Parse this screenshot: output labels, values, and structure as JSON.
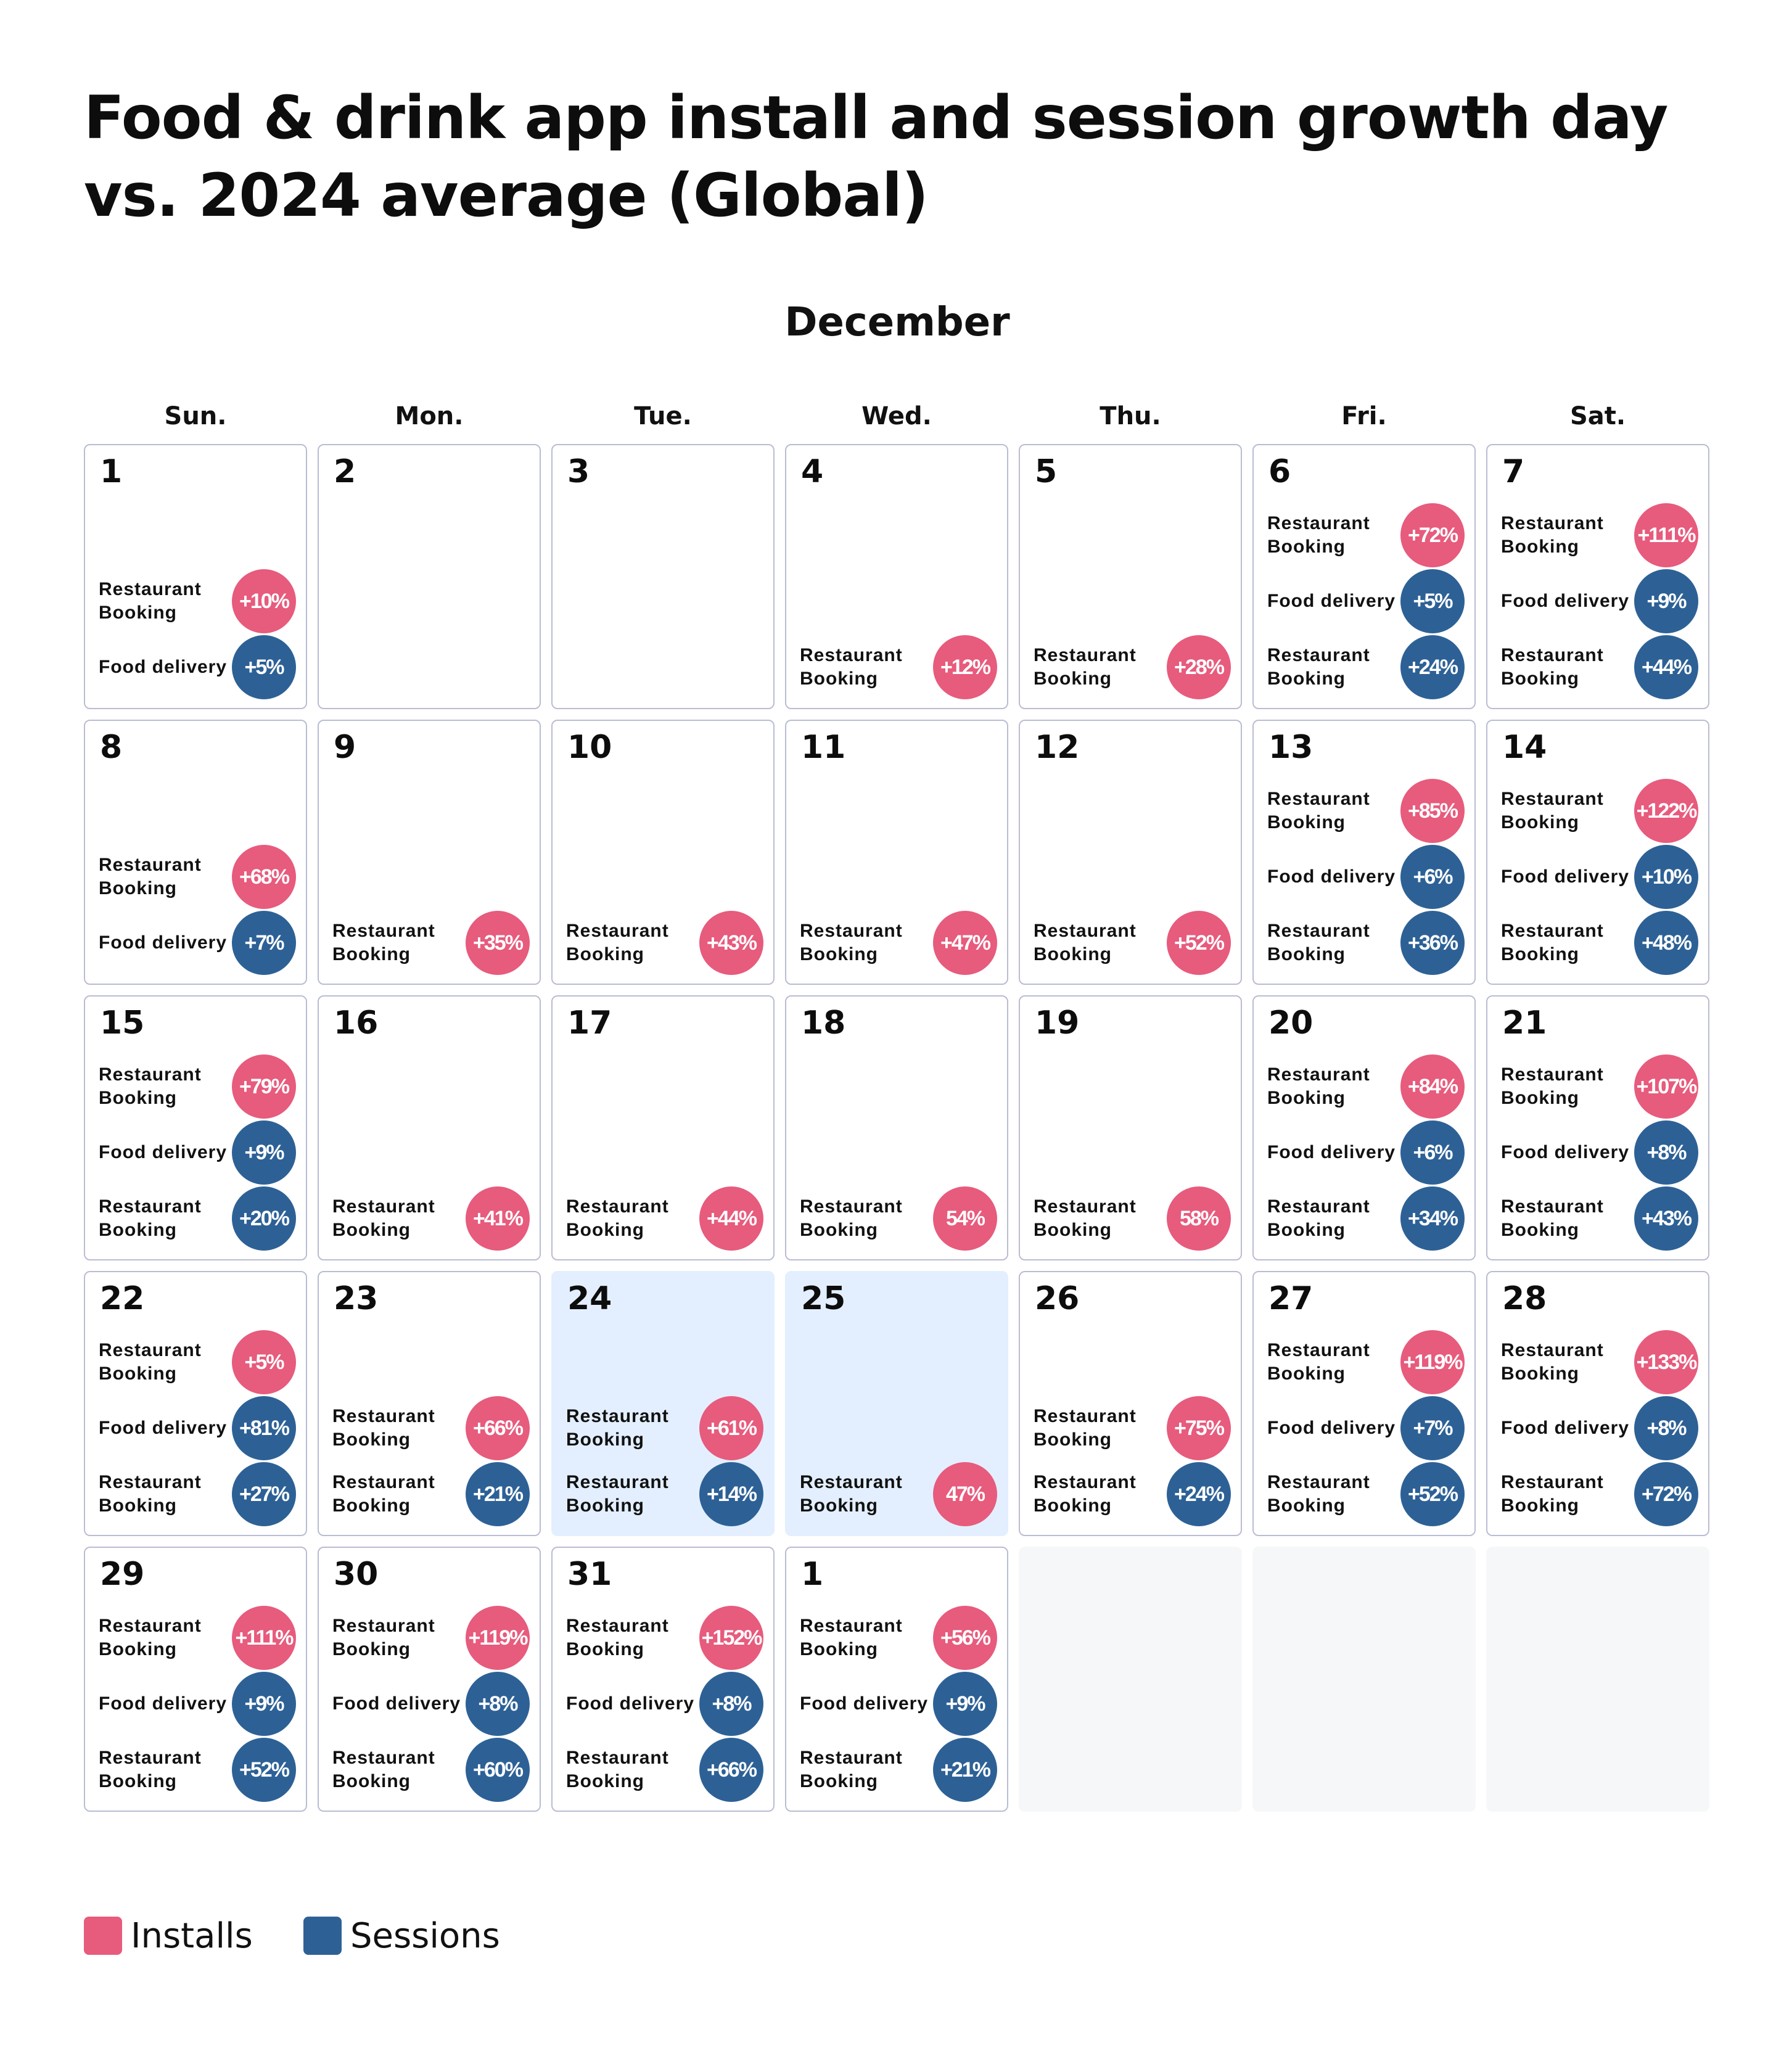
{
  "title": "Food & drink app install and session growth day vs. 2024 average (Global)",
  "month": "December",
  "colors": {
    "installs": "#e75b7d",
    "sessions": "#2d6196",
    "holiday": "#e3efff",
    "empty": "#f6f7f9"
  },
  "legend": [
    {
      "label": "Installs",
      "color": "#e75b7d"
    },
    {
      "label": "Sessions",
      "color": "#2d6196"
    }
  ],
  "chart_data": {
    "type": "table",
    "weekdays": [
      "Sun.",
      "Mon.",
      "Tue.",
      "Wed.",
      "Thu.",
      "Fri.",
      "Sat."
    ],
    "days": [
      {
        "day": "1",
        "entries": [
          {
            "label": "Restaurant Booking",
            "value": "+10%",
            "series": "Installs"
          },
          {
            "label": "Food delivery",
            "value": "+5%",
            "series": "Sessions"
          }
        ]
      },
      {
        "day": "2",
        "entries": []
      },
      {
        "day": "3",
        "entries": []
      },
      {
        "day": "4",
        "entries": [
          {
            "label": "Restaurant Booking",
            "value": "+12%",
            "series": "Installs"
          }
        ]
      },
      {
        "day": "5",
        "entries": [
          {
            "label": "Restaurant Booking",
            "value": "+28%",
            "series": "Installs"
          }
        ]
      },
      {
        "day": "6",
        "entries": [
          {
            "label": "Restaurant Booking",
            "value": "+72%",
            "series": "Installs"
          },
          {
            "label": "Food delivery",
            "value": "+5%",
            "series": "Sessions"
          },
          {
            "label": "Restaurant Booking",
            "value": "+24%",
            "series": "Sessions"
          }
        ]
      },
      {
        "day": "7",
        "entries": [
          {
            "label": "Restaurant Booking",
            "value": "+111%",
            "series": "Installs"
          },
          {
            "label": "Food delivery",
            "value": "+9%",
            "series": "Sessions"
          },
          {
            "label": "Restaurant Booking",
            "value": "+44%",
            "series": "Sessions"
          }
        ]
      },
      {
        "day": "8",
        "entries": [
          {
            "label": "Restaurant Booking",
            "value": "+68%",
            "series": "Installs"
          },
          {
            "label": "Food delivery",
            "value": "+7%",
            "series": "Sessions"
          }
        ]
      },
      {
        "day": "9",
        "entries": [
          {
            "label": "Restaurant Booking",
            "value": "+35%",
            "series": "Installs"
          }
        ]
      },
      {
        "day": "10",
        "entries": [
          {
            "label": "Restaurant Booking",
            "value": "+43%",
            "series": "Installs"
          }
        ]
      },
      {
        "day": "11",
        "entries": [
          {
            "label": "Restaurant Booking",
            "value": "+47%",
            "series": "Installs"
          }
        ]
      },
      {
        "day": "12",
        "entries": [
          {
            "label": "Restaurant Booking",
            "value": "+52%",
            "series": "Installs"
          }
        ]
      },
      {
        "day": "13",
        "entries": [
          {
            "label": "Restaurant Booking",
            "value": "+85%",
            "series": "Installs"
          },
          {
            "label": "Food delivery",
            "value": "+6%",
            "series": "Sessions"
          },
          {
            "label": "Restaurant Booking",
            "value": "+36%",
            "series": "Sessions"
          }
        ]
      },
      {
        "day": "14",
        "entries": [
          {
            "label": "Restaurant Booking",
            "value": "+122%",
            "series": "Installs"
          },
          {
            "label": "Food delivery",
            "value": "+10%",
            "series": "Sessions"
          },
          {
            "label": "Restaurant Booking",
            "value": "+48%",
            "series": "Sessions"
          }
        ]
      },
      {
        "day": "15",
        "entries": [
          {
            "label": "Restaurant Booking",
            "value": "+79%",
            "series": "Installs"
          },
          {
            "label": "Food delivery",
            "value": "+9%",
            "series": "Sessions"
          },
          {
            "label": "Restaurant Booking",
            "value": "+20%",
            "series": "Sessions"
          }
        ]
      },
      {
        "day": "16",
        "entries": [
          {
            "label": "Restaurant Booking",
            "value": "+41%",
            "series": "Installs"
          }
        ]
      },
      {
        "day": "17",
        "entries": [
          {
            "label": "Restaurant Booking",
            "value": "+44%",
            "series": "Installs"
          }
        ]
      },
      {
        "day": "18",
        "entries": [
          {
            "label": "Restaurant Booking",
            "value": "54%",
            "series": "Installs"
          }
        ]
      },
      {
        "day": "19",
        "entries": [
          {
            "label": "Restaurant Booking",
            "value": "58%",
            "series": "Installs"
          }
        ]
      },
      {
        "day": "20",
        "entries": [
          {
            "label": "Restaurant Booking",
            "value": "+84%",
            "series": "Installs"
          },
          {
            "label": "Food delivery",
            "value": "+6%",
            "series": "Sessions"
          },
          {
            "label": "Restaurant Booking",
            "value": "+34%",
            "series": "Sessions"
          }
        ]
      },
      {
        "day": "21",
        "entries": [
          {
            "label": "Restaurant Booking",
            "value": "+107%",
            "series": "Installs"
          },
          {
            "label": "Food delivery",
            "value": "+8%",
            "series": "Sessions"
          },
          {
            "label": "Restaurant Booking",
            "value": "+43%",
            "series": "Sessions"
          }
        ]
      },
      {
        "day": "22",
        "entries": [
          {
            "label": "Restaurant Booking",
            "value": "+5%",
            "series": "Installs"
          },
          {
            "label": "Food delivery",
            "value": "+81%",
            "series": "Sessions"
          },
          {
            "label": "Restaurant Booking",
            "value": "+27%",
            "series": "Sessions"
          }
        ]
      },
      {
        "day": "23",
        "entries": [
          {
            "label": "Restaurant Booking",
            "value": "+66%",
            "series": "Installs"
          },
          {
            "label": "Restaurant Booking",
            "value": "+21%",
            "series": "Sessions"
          }
        ]
      },
      {
        "day": "24",
        "highlight": true,
        "entries": [
          {
            "label": "Restaurant Booking",
            "value": "+61%",
            "series": "Installs"
          },
          {
            "label": "Restaurant Booking",
            "value": "+14%",
            "series": "Sessions"
          }
        ]
      },
      {
        "day": "25",
        "highlight": true,
        "entries": [
          {
            "label": "Restaurant Booking",
            "value": "47%",
            "series": "Installs"
          }
        ]
      },
      {
        "day": "26",
        "entries": [
          {
            "label": "Restaurant Booking",
            "value": "+75%",
            "series": "Installs"
          },
          {
            "label": "Restaurant Booking",
            "value": "+24%",
            "series": "Sessions"
          }
        ]
      },
      {
        "day": "27",
        "entries": [
          {
            "label": "Restaurant Booking",
            "value": "+119%",
            "series": "Installs"
          },
          {
            "label": "Food delivery",
            "value": "+7%",
            "series": "Sessions"
          },
          {
            "label": "Restaurant Booking",
            "value": "+52%",
            "series": "Sessions"
          }
        ]
      },
      {
        "day": "28",
        "entries": [
          {
            "label": "Restaurant Booking",
            "value": "+133%",
            "series": "Installs"
          },
          {
            "label": "Food delivery",
            "value": "+8%",
            "series": "Sessions"
          },
          {
            "label": "Restaurant Booking",
            "value": "+72%",
            "series": "Sessions"
          }
        ]
      },
      {
        "day": "29",
        "entries": [
          {
            "label": "Restaurant Booking",
            "value": "+111%",
            "series": "Installs"
          },
          {
            "label": "Food delivery",
            "value": "+9%",
            "series": "Sessions"
          },
          {
            "label": "Restaurant Booking",
            "value": "+52%",
            "series": "Sessions"
          }
        ]
      },
      {
        "day": "30",
        "entries": [
          {
            "label": "Restaurant Booking",
            "value": "+119%",
            "series": "Installs"
          },
          {
            "label": "Food delivery",
            "value": "+8%",
            "series": "Sessions"
          },
          {
            "label": "Restaurant Booking",
            "value": "+60%",
            "series": "Sessions"
          }
        ]
      },
      {
        "day": "31",
        "entries": [
          {
            "label": "Restaurant Booking",
            "value": "+152%",
            "series": "Installs"
          },
          {
            "label": "Food delivery",
            "value": "+8%",
            "series": "Sessions"
          },
          {
            "label": "Restaurant Booking",
            "value": "+66%",
            "series": "Sessions"
          }
        ]
      },
      {
        "day": "1",
        "entries": [
          {
            "label": "Restaurant Booking",
            "value": "+56%",
            "series": "Installs"
          },
          {
            "label": "Food delivery",
            "value": "+9%",
            "series": "Sessions"
          },
          {
            "label": "Restaurant Booking",
            "value": "+21%",
            "series": "Sessions"
          }
        ]
      },
      {
        "day": "",
        "empty": true,
        "entries": []
      },
      {
        "day": "",
        "empty": true,
        "entries": []
      },
      {
        "day": "",
        "empty": true,
        "entries": []
      }
    ]
  }
}
